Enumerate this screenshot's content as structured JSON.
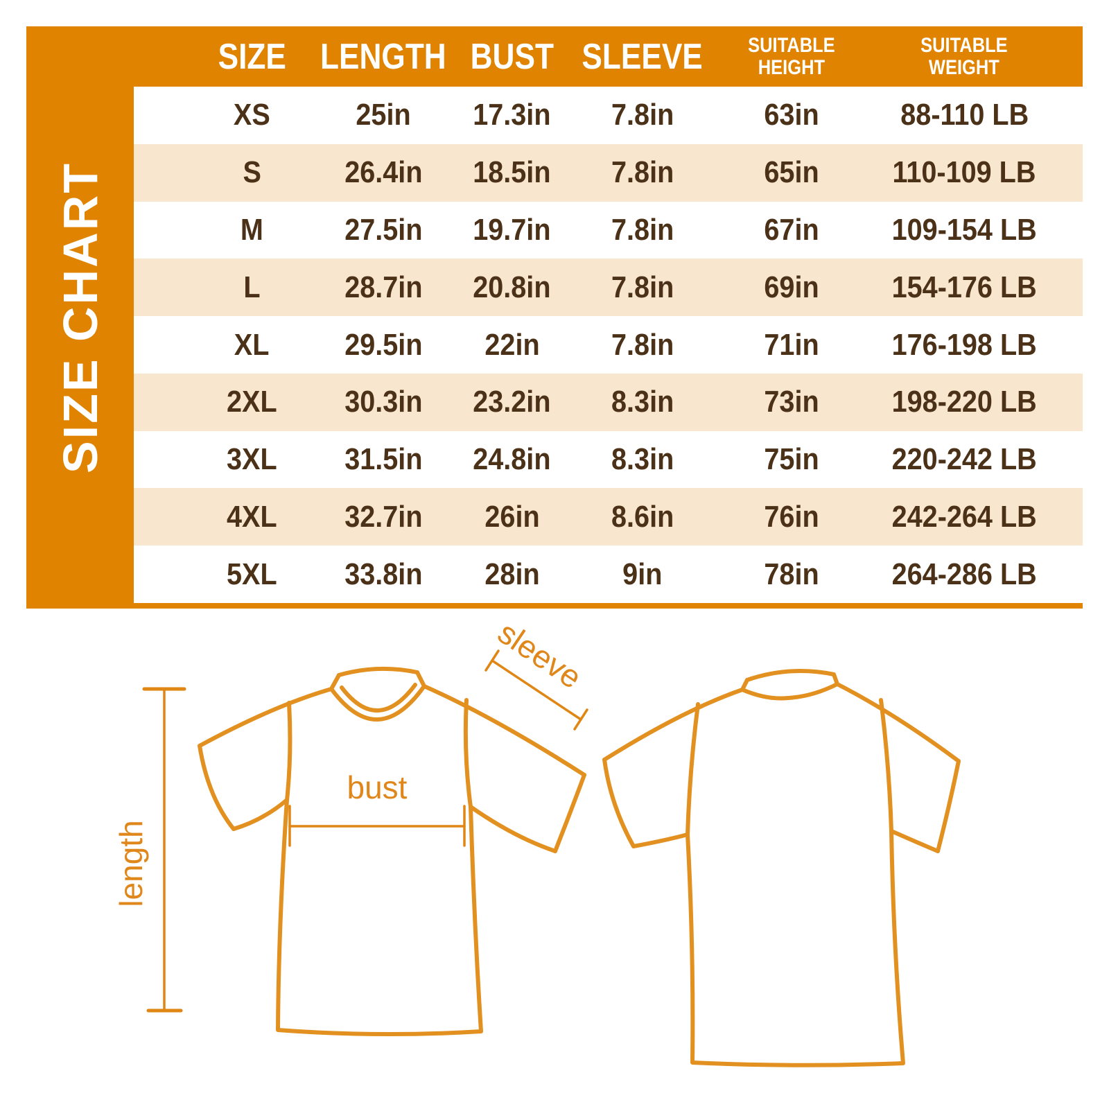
{
  "colors": {
    "accent_orange": "#E08300",
    "row_peach": "#F9E6CE",
    "row_white": "#FFFFFF",
    "text_brown": "#4B3117",
    "header_text": "#FFFFFF",
    "shirt_line_orange": "#E2901F",
    "label_orange": "#E0871C"
  },
  "size_chart": {
    "title": "SIZE CHART",
    "columns": [
      "SIZE",
      "LENGTH",
      "BUST",
      "SLEEVE",
      "SUITABLE\nHEIGHT",
      "SUITABLE\nWEIGHT"
    ],
    "rows": [
      {
        "size": "XS",
        "length": "25in",
        "bust": "17.3in",
        "sleeve": "7.8in",
        "height": "63in",
        "weight": "88-110 LB"
      },
      {
        "size": "S",
        "length": "26.4in",
        "bust": "18.5in",
        "sleeve": "7.8in",
        "height": "65in",
        "weight": "110-109 LB"
      },
      {
        "size": "M",
        "length": "27.5in",
        "bust": "19.7in",
        "sleeve": "7.8in",
        "height": "67in",
        "weight": "109-154 LB"
      },
      {
        "size": "L",
        "length": "28.7in",
        "bust": "20.8in",
        "sleeve": "7.8in",
        "height": "69in",
        "weight": "154-176 LB"
      },
      {
        "size": "XL",
        "length": "29.5in",
        "bust": "22in",
        "sleeve": "7.8in",
        "height": "71in",
        "weight": "176-198 LB"
      },
      {
        "size": "2XL",
        "length": "30.3in",
        "bust": "23.2in",
        "sleeve": "8.3in",
        "height": "73in",
        "weight": "198-220 LB"
      },
      {
        "size": "3XL",
        "length": "31.5in",
        "bust": "24.8in",
        "sleeve": "8.3in",
        "height": "75in",
        "weight": "220-242 LB"
      },
      {
        "size": "4XL",
        "length": "32.7in",
        "bust": "26in",
        "sleeve": "8.6in",
        "height": "76in",
        "weight": "242-264 LB"
      },
      {
        "size": "5XL",
        "length": "33.8in",
        "bust": "28in",
        "sleeve": "9in",
        "height": "78in",
        "weight": "264-286 LB"
      }
    ]
  },
  "diagram": {
    "sleeve_label": "sleeve",
    "bust_label": "bust",
    "length_label": "length"
  }
}
